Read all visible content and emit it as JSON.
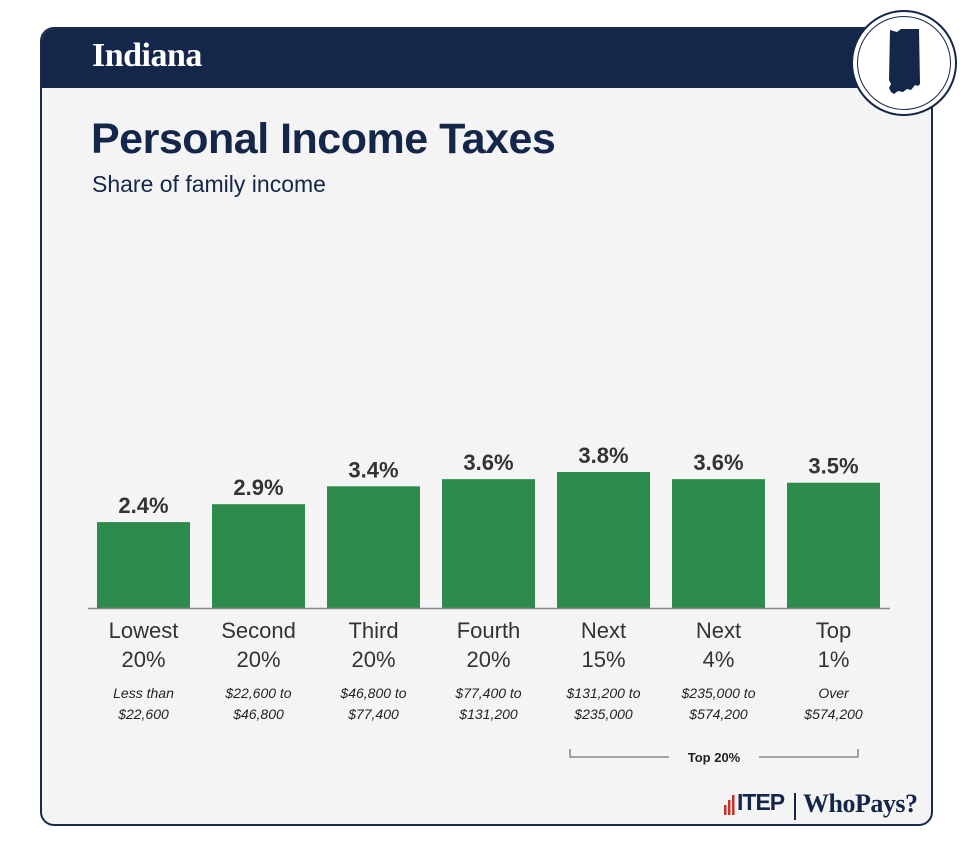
{
  "header": {
    "state": "Indiana"
  },
  "title": "Personal Income Taxes",
  "subtitle": "Share of family income",
  "colors": {
    "navy": "#14264a",
    "bar": "#2e8b4e",
    "axis": "#888888"
  },
  "chart_data": {
    "type": "bar",
    "title": "Personal Income Taxes",
    "subtitle": "Share of family income",
    "categories": [
      {
        "group": [
          "Lowest",
          "20%"
        ],
        "range": [
          "Less than",
          "$22,600"
        ]
      },
      {
        "group": [
          "Second",
          "20%"
        ],
        "range": [
          "$22,600 to",
          "$46,800"
        ]
      },
      {
        "group": [
          "Third",
          "20%"
        ],
        "range": [
          "$46,800 to",
          "$77,400"
        ]
      },
      {
        "group": [
          "Fourth",
          "20%"
        ],
        "range": [
          "$77,400 to",
          "$131,200"
        ]
      },
      {
        "group": [
          "Next",
          "15%"
        ],
        "range": [
          "$131,200 to",
          "$235,000"
        ]
      },
      {
        "group": [
          "Next",
          "4%"
        ],
        "range": [
          "$235,000 to",
          "$574,200"
        ]
      },
      {
        "group": [
          "Top",
          "1%"
        ],
        "range": [
          "Over",
          "$574,200"
        ]
      }
    ],
    "values": [
      2.4,
      2.9,
      3.4,
      3.6,
      3.8,
      3.6,
      3.5
    ],
    "data_labels": [
      "2.4%",
      "2.9%",
      "3.4%",
      "3.6%",
      "3.8%",
      "3.6%",
      "3.5%"
    ],
    "ylim": [
      0,
      3.8
    ],
    "grid": false,
    "bracket": {
      "label": "Top 20%",
      "from_index": 4,
      "to_index": 6
    }
  },
  "footer": {
    "org": "ITEP",
    "brand": "WhoPays?"
  }
}
